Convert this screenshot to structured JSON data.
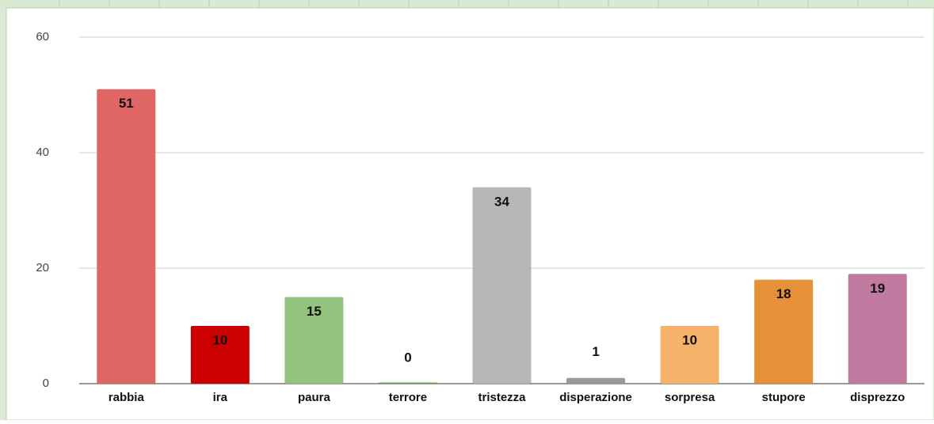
{
  "chart_data": {
    "type": "bar",
    "categories": [
      "rabbia",
      "ira",
      "paura",
      "terrore",
      "tristezza",
      "disperazione",
      "sorpresa",
      "stupore",
      "disprezzo"
    ],
    "values": [
      51,
      10,
      15,
      0,
      34,
      1,
      10,
      18,
      19
    ],
    "colors": [
      "#e06666",
      "#cc0000",
      "#93c47d",
      "#6aa84f",
      "#b7b7b7",
      "#999999",
      "#f6b26b",
      "#e69138",
      "#c27ba0"
    ],
    "ylim": [
      0,
      60
    ],
    "yticks": [
      0,
      20,
      40,
      60
    ],
    "grid": true
  }
}
